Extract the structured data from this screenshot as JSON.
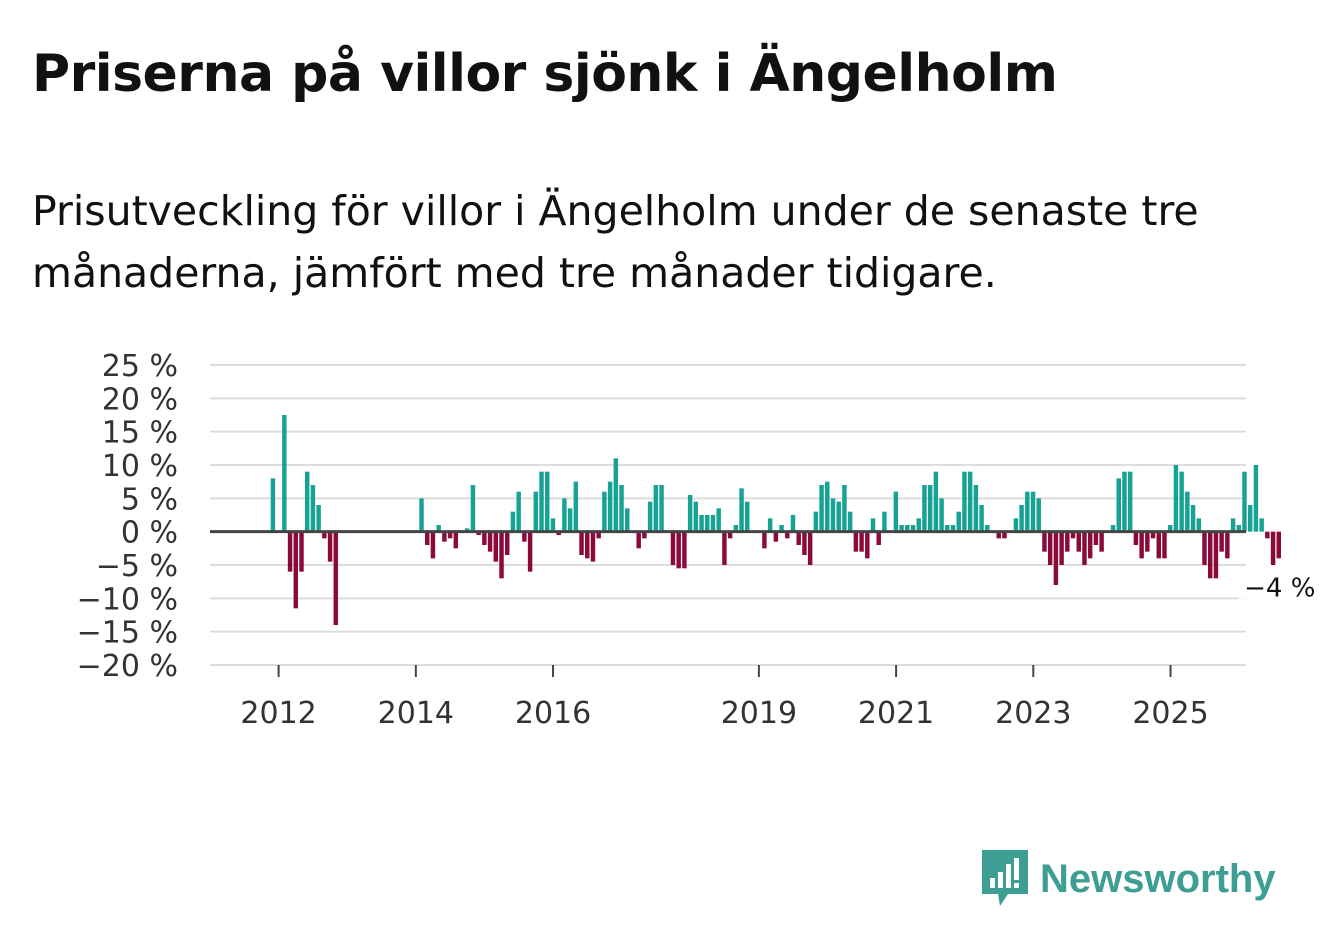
{
  "title": "Priserna på villor sjönk i Ängelholm",
  "subtitle": "Prisutveckling för villor i Ängelholm under de senaste tre månaderna, jämfört med tre månader tidigare.",
  "brand": {
    "name": "Newsworthy"
  },
  "colors": {
    "positive": "#16a394",
    "negative": "#8b0a3a",
    "grid": "#dddddd",
    "zero": "#444444"
  },
  "chart_data": {
    "type": "bar",
    "title": "",
    "xlabel": "",
    "ylabel": "",
    "ylim": [
      -20,
      25
    ],
    "yticks": [
      25,
      20,
      15,
      10,
      5,
      0,
      -5,
      -10,
      -15,
      -20
    ],
    "ytick_labels": [
      "25 %",
      "20 %",
      "15 %",
      "10 %",
      "5 %",
      "0 %",
      "−5 %",
      "−10 %",
      "−15 %",
      "−20 %"
    ],
    "xlim": [
      2011.0,
      2026.1
    ],
    "xticks": [
      {
        "value": 2012,
        "label": "2012"
      },
      {
        "value": 2014,
        "label": "2014"
      },
      {
        "value": 2016,
        "label": "2016"
      },
      {
        "value": 2019,
        "label": "2019"
      },
      {
        "value": 2021,
        "label": "2021"
      },
      {
        "value": 2023,
        "label": "2023"
      },
      {
        "value": 2025,
        "label": "2025"
      }
    ],
    "start": 2011.917,
    "step_per_bar": 0.0833,
    "values": [
      8,
      0,
      17.5,
      -6,
      -11.5,
      -6,
      9,
      7,
      4,
      -1,
      -4.5,
      -14,
      0,
      0,
      0,
      0,
      0,
      0,
      0,
      0,
      0,
      0,
      0,
      0,
      0,
      0,
      5,
      -2,
      -4,
      1,
      -1.5,
      -1,
      -2.5,
      0,
      0.5,
      7,
      -0.5,
      -2,
      -3,
      -4.5,
      -7,
      -3.5,
      3,
      6,
      -1.5,
      -6,
      6,
      9,
      9,
      2,
      -0.5,
      5,
      3.5,
      7.5,
      -3.5,
      -4,
      -4.5,
      -1,
      6,
      7.5,
      11,
      7,
      3.5,
      0,
      -2.5,
      -1,
      4.5,
      7,
      7,
      0,
      -5,
      -5.5,
      -5.5,
      5.5,
      4.5,
      2.5,
      2.5,
      2.5,
      3.5,
      -5,
      -1,
      1,
      6.5,
      4.5,
      0,
      0,
      -2.5,
      2,
      -1.5,
      1,
      -1,
      2.5,
      -2,
      -3.5,
      -5,
      3,
      7,
      7.5,
      5,
      4.5,
      7,
      3,
      -3,
      -3,
      -4,
      2,
      -2,
      3,
      0,
      6,
      1,
      1,
      1,
      2,
      7,
      7,
      9,
      5,
      1,
      1,
      3,
      9,
      9,
      7,
      4,
      1,
      0,
      -1,
      -1,
      0,
      2,
      4,
      6,
      6,
      5,
      -3,
      -5,
      -8,
      -5,
      -3,
      -1,
      -3,
      -5,
      -4,
      -2,
      -3,
      0,
      1,
      8,
      9,
      9,
      -2,
      -4,
      -3,
      -1,
      -4,
      -4,
      1,
      10,
      9,
      6,
      4,
      2,
      -5,
      -7,
      -7,
      -3,
      -4,
      2,
      1,
      9,
      4,
      10,
      2,
      -1,
      -5,
      -4
    ],
    "last_value_label": "−4 %"
  }
}
